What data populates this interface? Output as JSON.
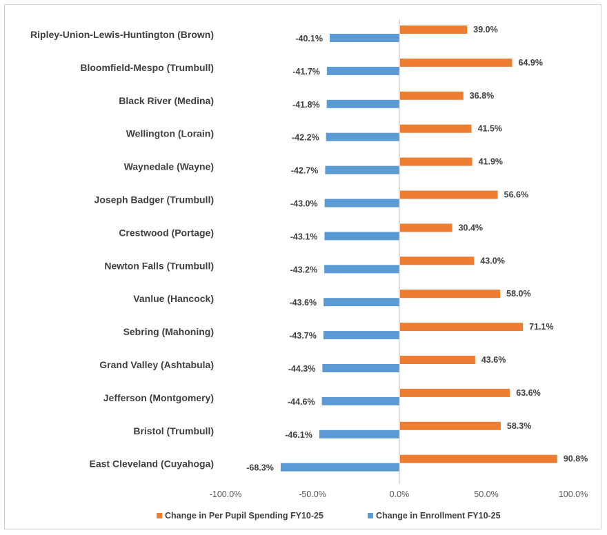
{
  "chart_data": {
    "type": "bar",
    "orientation": "horizontal",
    "categories": [
      "Ripley-Union-Lewis-Huntington (Brown)",
      "Bloomfield-Mespo (Trumbull)",
      "Black River (Medina)",
      "Wellington (Lorain)",
      "Waynedale (Wayne)",
      "Joseph Badger (Trumbull)",
      "Crestwood (Portage)",
      "Newton Falls (Trumbull)",
      "Vanlue (Hancock)",
      "Sebring (Mahoning)",
      "Grand Valley (Ashtabula)",
      "Jefferson (Montgomery)",
      "Bristol (Trumbull)",
      "East Cleveland (Cuyahoga)"
    ],
    "series": [
      {
        "name": "Change in Per Pupil Spending FY10-25",
        "color": "#ED7D31",
        "values": [
          39.0,
          64.9,
          36.8,
          41.5,
          41.9,
          56.6,
          30.4,
          43.0,
          58.0,
          71.1,
          43.6,
          63.6,
          58.3,
          90.8
        ],
        "labels": [
          "39.0%",
          "64.9%",
          "36.8%",
          "41.5%",
          "41.9%",
          "56.6%",
          "30.4%",
          "43.0%",
          "58.0%",
          "71.1%",
          "43.6%",
          "63.6%",
          "58.3%",
          "90.8%"
        ]
      },
      {
        "name": "Change in Enrollment FY10-25",
        "color": "#5B9BD5",
        "values": [
          -40.1,
          -41.7,
          -41.8,
          -42.2,
          -42.7,
          -43.0,
          -43.1,
          -43.2,
          -43.6,
          -43.7,
          -44.3,
          -44.6,
          -46.1,
          -68.3
        ],
        "labels": [
          "-40.1%",
          "-41.7%",
          "-41.8%",
          "-42.2%",
          "-42.7%",
          "-43.0%",
          "-43.1%",
          "-43.2%",
          "-43.6%",
          "-43.7%",
          "-44.3%",
          "-44.6%",
          "-46.1%",
          "-68.3%"
        ]
      }
    ],
    "xlim": [
      -100,
      100
    ],
    "xticks": [
      -100,
      -50,
      0,
      50,
      100
    ],
    "xtick_labels": [
      "-100.0%",
      "-50.0%",
      "0.0%",
      "50.0%",
      "100.0%"
    ],
    "title": "",
    "xlabel": "",
    "ylabel": "",
    "grid": false,
    "legend_position": "bottom"
  }
}
